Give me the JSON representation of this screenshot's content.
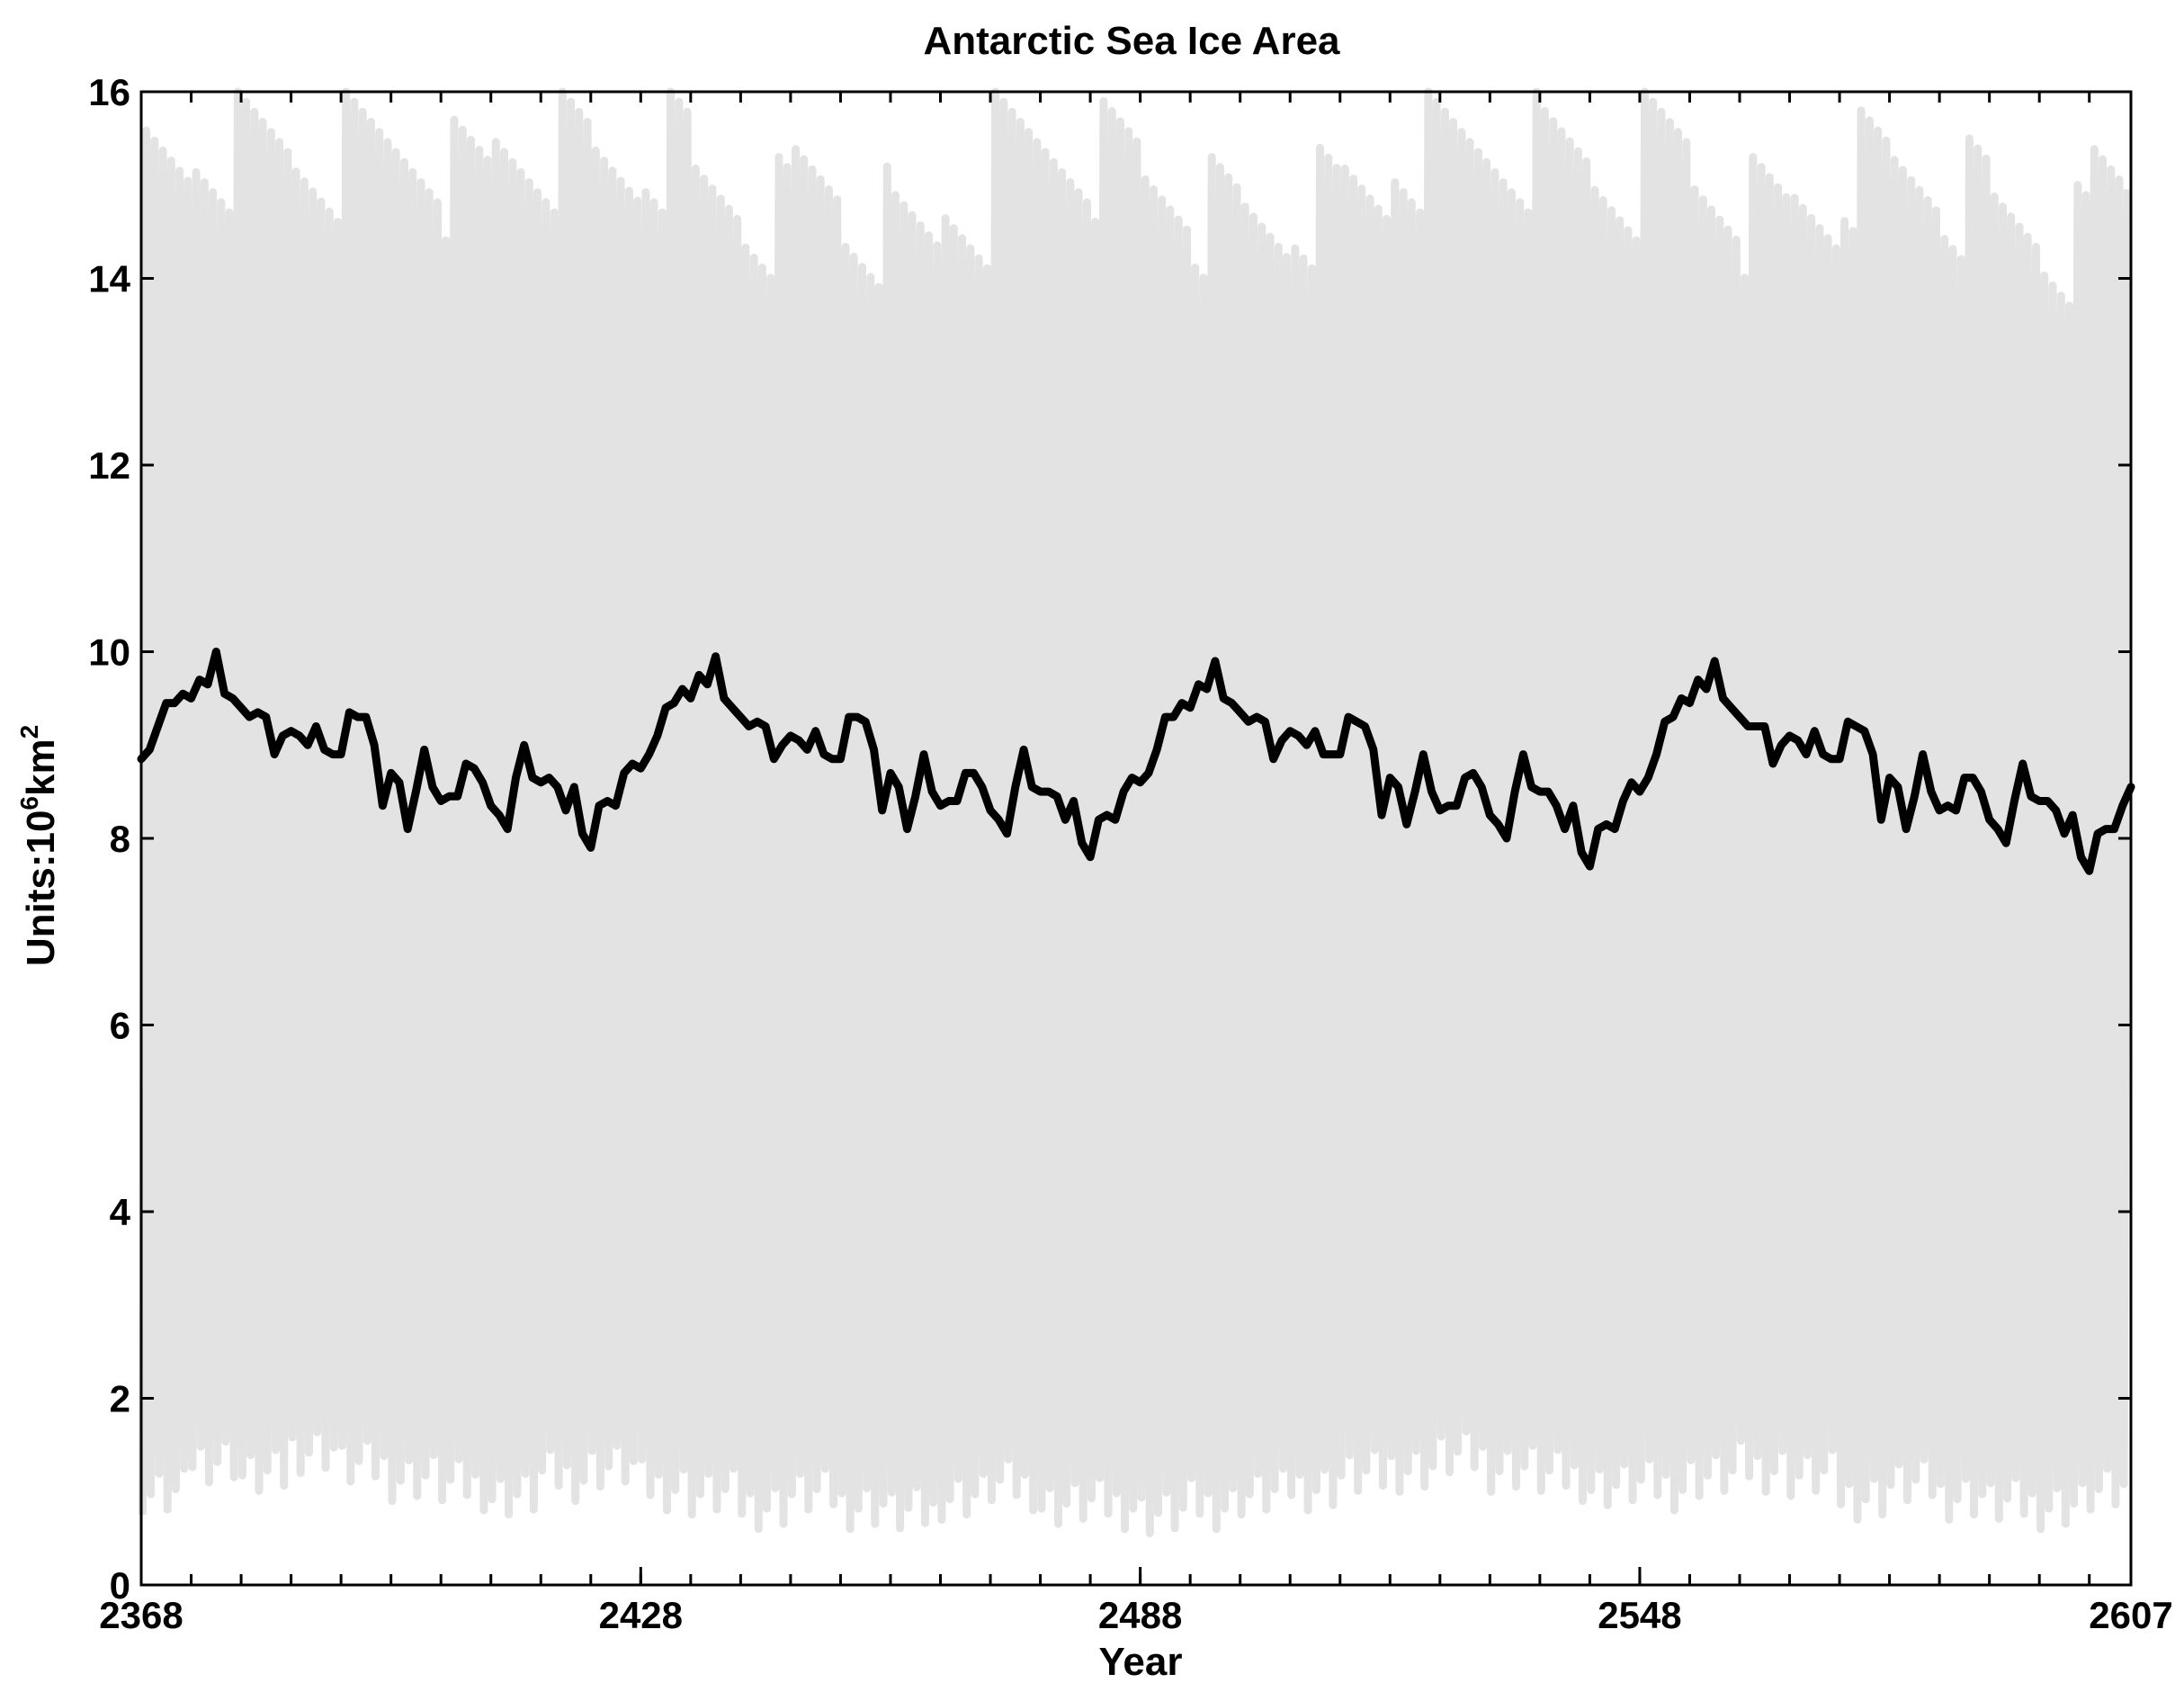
{
  "chart_data": {
    "type": "line",
    "title": "Antarctic Sea Ice Area",
    "xlabel": "Year",
    "ylabel": {
      "prefix": "Units:10",
      "exp1": "6",
      "mid": "km",
      "exp2": "2"
    },
    "xlim": [
      2368,
      2607
    ],
    "ylim": [
      0,
      16
    ],
    "xticks_major": [
      "2368",
      "2428",
      "2488",
      "2548",
      "2607"
    ],
    "xticks_major_values": [
      2368,
      2428,
      2488,
      2548,
      2607
    ],
    "xticks_minor_step": 6,
    "yticks": [
      "0",
      "2",
      "4",
      "6",
      "8",
      "10",
      "12",
      "14",
      "16"
    ],
    "yticks_values": [
      0,
      2,
      4,
      6,
      8,
      10,
      12,
      14,
      16
    ],
    "grid": false,
    "colors": {
      "monthly": "#e3e3e3",
      "annual": "#000000",
      "axes": "#000000"
    },
    "series": [
      {
        "kind": "monthly",
        "description_values": "seasonal cycle per year: min, max",
        "min": [
          0.7,
          1.1,
          0.9,
          1.2,
          1.0,
          0.9,
          0.8,
          0.7,
          0.9,
          1.0,
          0.8,
          0.7,
          0.6,
          0.7,
          0.6,
          0.5,
          0.7,
          0.8,
          0.6,
          0.6,
          0.5,
          0.6,
          0.7,
          0.8,
          0.9,
          1.0,
          1.1,
          1.0,
          0.9,
          0.8,
          0.8,
          0.9,
          1.0,
          0.9,
          0.7,
          0.8,
          0.7,
          0.6,
          0.6,
          0.7
        ],
        "max": [
          15.8,
          16.0,
          16.0,
          15.9,
          16.0,
          16.0,
          15.7,
          16.0,
          16.0,
          15.8,
          16.0,
          15.5,
          15.3,
          15.6,
          15.2,
          15.0,
          15.4,
          16.0,
          16.0,
          15.9,
          15.6,
          15.3,
          15.2,
          15.4,
          15.5,
          16.0,
          16.0,
          16.0,
          15.9,
          15.7,
          16.0,
          15.6,
          15.3,
          15.4,
          15.8,
          15.7,
          15.5,
          15.2,
          15.0,
          15.6
        ]
      },
      {
        "kind": "annual",
        "x": [
          2368,
          2369,
          2370,
          2371,
          2372,
          2373,
          2374,
          2375,
          2376,
          2377,
          2378,
          2379,
          2380,
          2381,
          2382,
          2383,
          2384,
          2385,
          2386,
          2387,
          2388,
          2389,
          2390,
          2391,
          2392,
          2393,
          2394,
          2395,
          2396,
          2397,
          2398,
          2399,
          2400,
          2401,
          2402,
          2403,
          2404,
          2405,
          2406,
          2407,
          2408,
          2409,
          2410,
          2411,
          2412,
          2413,
          2414,
          2415,
          2416,
          2417,
          2418,
          2419,
          2420,
          2421,
          2422,
          2423,
          2424,
          2425,
          2426,
          2427,
          2428,
          2429,
          2430,
          2431,
          2432,
          2433,
          2434,
          2435,
          2436,
          2437,
          2438,
          2439,
          2440,
          2441,
          2442,
          2443,
          2444,
          2445,
          2446,
          2447,
          2448,
          2449,
          2450,
          2451,
          2452,
          2453,
          2454,
          2455,
          2456,
          2457,
          2458,
          2459,
          2460,
          2461,
          2462,
          2463,
          2464,
          2465,
          2466,
          2467,
          2468,
          2469,
          2470,
          2471,
          2472,
          2473,
          2474,
          2475,
          2476,
          2477,
          2478,
          2479,
          2480,
          2481,
          2482,
          2483,
          2484,
          2485,
          2486,
          2487,
          2488,
          2489,
          2490,
          2491,
          2492,
          2493,
          2494,
          2495,
          2496,
          2497,
          2498,
          2499,
          2500,
          2501,
          2502,
          2503,
          2504,
          2505,
          2506,
          2507,
          2508,
          2509,
          2510,
          2511,
          2512,
          2513,
          2514,
          2515,
          2516,
          2517,
          2518,
          2519,
          2520,
          2521,
          2522,
          2523,
          2524,
          2525,
          2526,
          2527,
          2528,
          2529,
          2530,
          2531,
          2532,
          2533,
          2534,
          2535,
          2536,
          2537,
          2538,
          2539,
          2540,
          2541,
          2542,
          2543,
          2544,
          2545,
          2546,
          2547,
          2548,
          2549,
          2550,
          2551,
          2552,
          2553,
          2554,
          2555,
          2556,
          2557,
          2558,
          2559,
          2560,
          2561,
          2562,
          2563,
          2564,
          2565,
          2566,
          2567,
          2568,
          2569,
          2570,
          2571,
          2572,
          2573,
          2574,
          2575,
          2576,
          2577,
          2578,
          2579,
          2580,
          2581,
          2582,
          2583,
          2584,
          2585,
          2586,
          2587,
          2588,
          2589,
          2590,
          2591,
          2592,
          2593,
          2594,
          2595,
          2596,
          2597,
          2598,
          2599,
          2600,
          2601,
          2602,
          2603,
          2604,
          2605,
          2606,
          2607
        ],
        "y": [
          8.85,
          8.95,
          9.2,
          9.45,
          9.45,
          9.55,
          9.5,
          9.7,
          9.65,
          10.0,
          9.55,
          9.5,
          9.4,
          9.3,
          9.35,
          9.3,
          8.9,
          9.1,
          9.15,
          9.1,
          9.0,
          9.2,
          8.95,
          8.9,
          8.9,
          9.35,
          9.3,
          9.3,
          9.0,
          8.35,
          8.7,
          8.6,
          8.1,
          8.5,
          8.95,
          8.55,
          8.4,
          8.45,
          8.45,
          8.8,
          8.75,
          8.6,
          8.35,
          8.25,
          8.1,
          8.65,
          9.0,
          8.65,
          8.6,
          8.65,
          8.55,
          8.3,
          8.55,
          8.05,
          7.9,
          8.35,
          8.4,
          8.35,
          8.7,
          8.8,
          8.75,
          8.9,
          9.1,
          9.4,
          9.45,
          9.6,
          9.5,
          9.75,
          9.65,
          9.95,
          9.5,
          9.4,
          9.3,
          9.2,
          9.25,
          9.2,
          8.85,
          9.0,
          9.1,
          9.05,
          8.95,
          9.15,
          8.9,
          8.85,
          8.85,
          9.3,
          9.3,
          9.25,
          8.95,
          8.3,
          8.7,
          8.55,
          8.1,
          8.45,
          8.9,
          8.5,
          8.35,
          8.4,
          8.4,
          8.7,
          8.7,
          8.55,
          8.3,
          8.2,
          8.05,
          8.55,
          8.95,
          8.55,
          8.5,
          8.5,
          8.45,
          8.2,
          8.4,
          7.95,
          7.8,
          8.2,
          8.25,
          8.2,
          8.5,
          8.65,
          8.6,
          8.7,
          8.95,
          9.3,
          9.3,
          9.45,
          9.4,
          9.65,
          9.6,
          9.9,
          9.5,
          9.45,
          9.35,
          9.25,
          9.3,
          9.25,
          8.85,
          9.05,
          9.15,
          9.1,
          9.0,
          9.15,
          8.9,
          8.9,
          8.9,
          9.3,
          9.25,
          9.2,
          8.95,
          8.25,
          8.65,
          8.55,
          8.15,
          8.5,
          8.9,
          8.5,
          8.3,
          8.35,
          8.35,
          8.65,
          8.7,
          8.55,
          8.25,
          8.15,
          8.0,
          8.5,
          8.9,
          8.55,
          8.5,
          8.5,
          8.35,
          8.1,
          8.35,
          7.85,
          7.7,
          8.1,
          8.15,
          8.1,
          8.4,
          8.6,
          8.5,
          8.65,
          8.9,
          9.25,
          9.3,
          9.5,
          9.45,
          9.7,
          9.6,
          9.9,
          9.5,
          9.4,
          9.3,
          9.2,
          9.2,
          9.2,
          8.8,
          9.0,
          9.1,
          9.05,
          8.9,
          9.15,
          8.9,
          8.85,
          8.85,
          9.25,
          9.2,
          9.15,
          8.9,
          8.2,
          8.65,
          8.55,
          8.1,
          8.45,
          8.9,
          8.5,
          8.3,
          8.35,
          8.3,
          8.65,
          8.65,
          8.5,
          8.2,
          8.1,
          7.95,
          8.4,
          8.8,
          8.45,
          8.4,
          8.4,
          8.3,
          8.05,
          8.25,
          7.8,
          7.65,
          8.05,
          8.1,
          8.1,
          8.35,
          8.55
        ]
      }
    ]
  }
}
